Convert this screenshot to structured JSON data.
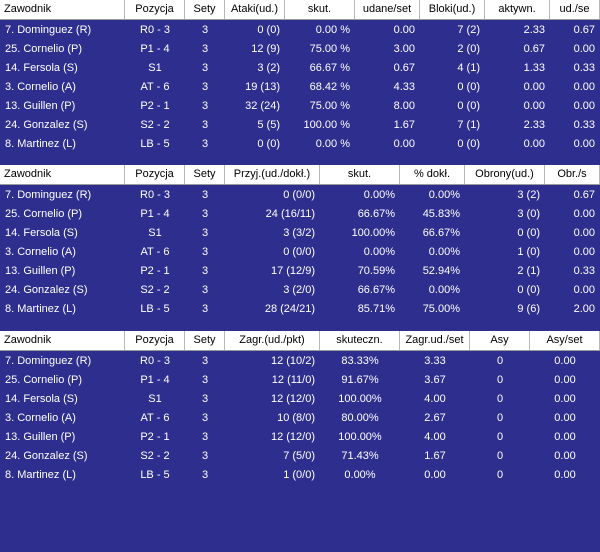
{
  "tables": [
    {
      "headers": [
        "Zawodnik",
        "Pozycja",
        "Sety",
        "Ataki(ud.)",
        "skut.",
        "udane/set",
        "Bloki(ud.)",
        "aktywn.",
        "ud./se"
      ],
      "rows": [
        [
          "7. Dominguez (R)",
          "R0 - 3",
          "3",
          "0 (0)",
          "0.00 %",
          "0.00",
          "7 (2)",
          "2.33",
          "0.67"
        ],
        [
          "25. Cornelio (P)",
          "P1 - 4",
          "3",
          "12 (9)",
          "75.00 %",
          "3.00",
          "2 (0)",
          "0.67",
          "0.00"
        ],
        [
          "14. Fersola (S)",
          "S1",
          "3",
          "3 (2)",
          "66.67 %",
          "0.67",
          "4 (1)",
          "1.33",
          "0.33"
        ],
        [
          "3. Cornelio (A)",
          "AT - 6",
          "3",
          "19 (13)",
          "68.42 %",
          "4.33",
          "0 (0)",
          "0.00",
          "0.00"
        ],
        [
          "13. Guillen (P)",
          "P2 - 1",
          "3",
          "32 (24)",
          "75.00 %",
          "8.00",
          "0 (0)",
          "0.00",
          "0.00"
        ],
        [
          "24. Gonzalez (S)",
          "S2 - 2",
          "3",
          "5 (5)",
          "100.00 %",
          "1.67",
          "7 (1)",
          "2.33",
          "0.33"
        ],
        [
          "8. Martinez (L)",
          "LB - 5",
          "3",
          "0 (0)",
          "0.00 %",
          "0.00",
          "0 (0)",
          "0.00",
          "0.00"
        ]
      ]
    },
    {
      "headers": [
        "Zawodnik",
        "Pozycja",
        "Sety",
        "Przyj.(ud./dokł.)",
        "skut.",
        "% dokł.",
        "Obrony(ud.)",
        "Obr./s"
      ],
      "rows": [
        [
          "7. Dominguez (R)",
          "R0 - 3",
          "3",
          "0 (0/0)",
          "0.00%",
          "0.00%",
          "3 (2)",
          "0.67"
        ],
        [
          "25. Cornelio (P)",
          "P1 - 4",
          "3",
          "24 (16/11)",
          "66.67%",
          "45.83%",
          "3 (0)",
          "0.00"
        ],
        [
          "14. Fersola (S)",
          "S1",
          "3",
          "3 (3/2)",
          "100.00%",
          "66.67%",
          "0 (0)",
          "0.00"
        ],
        [
          "3. Cornelio (A)",
          "AT - 6",
          "3",
          "0 (0/0)",
          "0.00%",
          "0.00%",
          "1 (0)",
          "0.00"
        ],
        [
          "13. Guillen (P)",
          "P2 - 1",
          "3",
          "17 (12/9)",
          "70.59%",
          "52.94%",
          "2 (1)",
          "0.33"
        ],
        [
          "24. Gonzalez (S)",
          "S2 - 2",
          "3",
          "3 (2/0)",
          "66.67%",
          "0.00%",
          "0 (0)",
          "0.00"
        ],
        [
          "8. Martinez (L)",
          "LB - 5",
          "3",
          "28 (24/21)",
          "85.71%",
          "75.00%",
          "9 (6)",
          "2.00"
        ]
      ]
    },
    {
      "headers": [
        "Zawodnik",
        "Pozycja",
        "Sety",
        "Zagr.(ud./pkt)",
        "skuteczn.",
        "Zagr.ud./set",
        "Asy",
        "Asy/set"
      ],
      "rows": [
        [
          "7. Dominguez (R)",
          "R0 - 3",
          "3",
          "12 (10/2)",
          "83.33%",
          "3.33",
          "0",
          "0.00"
        ],
        [
          "25. Cornelio (P)",
          "P1 - 4",
          "3",
          "12 (11/0)",
          "91.67%",
          "3.67",
          "0",
          "0.00"
        ],
        [
          "14. Fersola (S)",
          "S1",
          "3",
          "12 (12/0)",
          "100.00%",
          "4.00",
          "0",
          "0.00"
        ],
        [
          "3. Cornelio (A)",
          "AT - 6",
          "3",
          "10 (8/0)",
          "80.00%",
          "2.67",
          "0",
          "0.00"
        ],
        [
          "13. Guillen (P)",
          "P2 - 1",
          "3",
          "12 (12/0)",
          "100.00%",
          "4.00",
          "0",
          "0.00"
        ],
        [
          "24. Gonzalez (S)",
          "S2 - 2",
          "3",
          "7 (5/0)",
          "71.43%",
          "1.67",
          "0",
          "0.00"
        ],
        [
          "8. Martinez (L)",
          "LB - 5",
          "3",
          "1 (0/0)",
          "0.00%",
          "0.00",
          "0",
          "0.00"
        ]
      ]
    }
  ]
}
